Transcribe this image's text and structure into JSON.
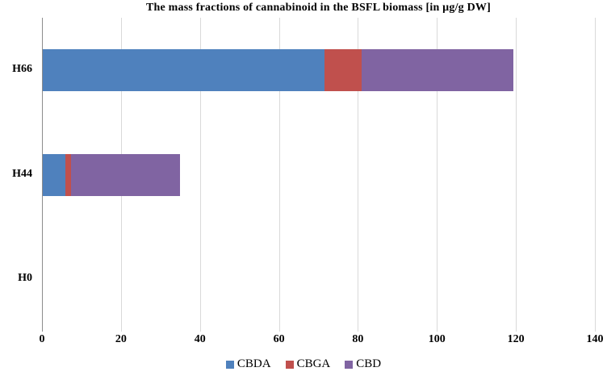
{
  "title": "The mass fractions of cannabinoid in the BSFL biomass [in µg/g DW]",
  "colors": {
    "background": "#ffffff",
    "gridline": "#d9d9d9",
    "axis_line": "#8c8c8c",
    "text": "#000000",
    "cbda_blue": "#4f81bd",
    "cbga_red": "#c0504d",
    "cbd_purple": "#8064a2"
  },
  "chart_data": {
    "type": "bar",
    "orientation": "horizontal",
    "stacked": true,
    "title": "The mass fractions of cannabinoid in the BSFL biomass [in µg/g DW]",
    "categories": [
      "H66",
      "H44",
      "H0"
    ],
    "series": [
      {
        "name": "CBDA",
        "color": "#4f81bd",
        "values": [
          71.3,
          5.7,
          0
        ]
      },
      {
        "name": "CBGA",
        "color": "#c0504d",
        "values": [
          9.4,
          1.4,
          0
        ]
      },
      {
        "name": "CBD",
        "color": "#8064a2",
        "values": [
          38.5,
          27.6,
          0
        ]
      }
    ],
    "totals": [
      119.2,
      34.7,
      0
    ],
    "xlabel": "",
    "ylabel": "",
    "xlim": [
      0,
      140
    ],
    "xticks": [
      0,
      20,
      40,
      60,
      80,
      100,
      120,
      140
    ],
    "grid": true,
    "legend_position": "bottom",
    "legend_labels": [
      "CBDA",
      "CBGA",
      "CBD"
    ]
  }
}
